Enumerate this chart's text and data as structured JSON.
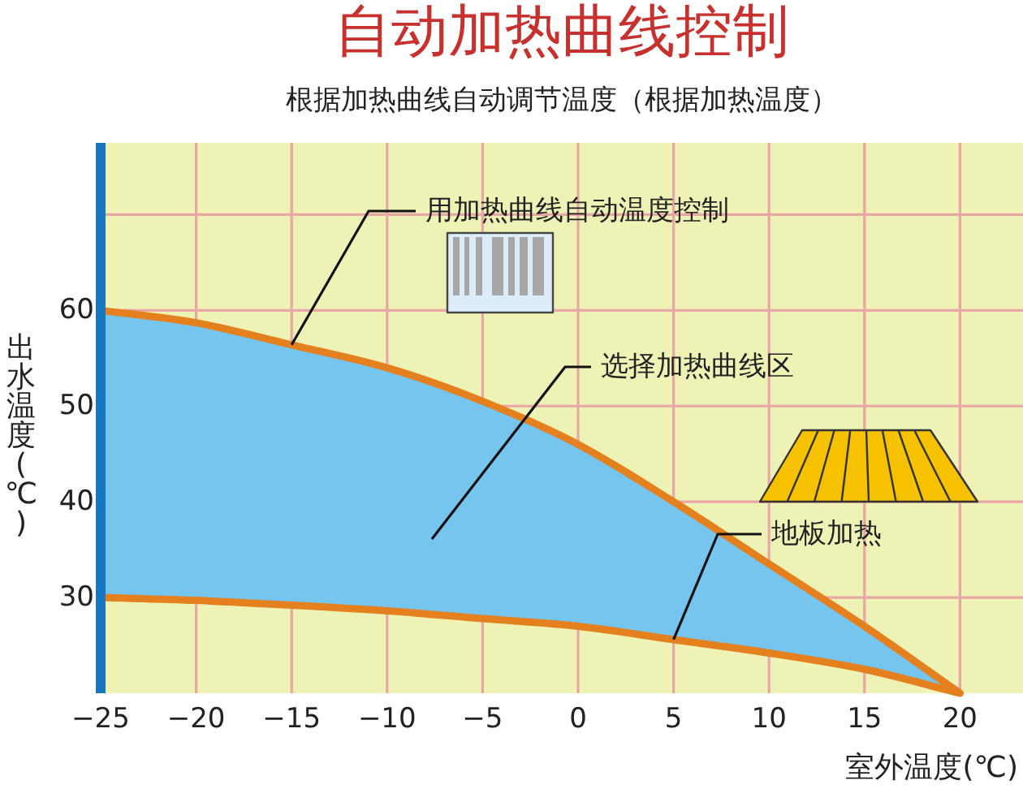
{
  "chart_data": {
    "type": "line",
    "title": "自动加热曲线控制",
    "subtitle": "根据加热曲线自动调节温度（根据加热温度）",
    "xlabel": "室外温度(℃)",
    "ylabel": "出水温度(℃)",
    "x": [
      -25,
      -20,
      -15,
      -10,
      -5,
      0,
      5,
      10,
      15,
      20
    ],
    "series": [
      {
        "type": "line",
        "color": "#e5801f",
        "values": [
          60,
          58.7,
          56.4,
          54,
          50.5,
          46,
          40,
          33.5,
          27,
          20
        ],
        "lower": [
          30,
          29.7,
          29.2,
          28.6,
          27.8,
          27,
          25.6,
          24.2,
          22.5,
          20
        ],
        "upper": [
          60,
          58.7,
          56.4,
          54,
          50.5,
          46,
          40,
          33.5,
          27,
          20
        ]
      },
      {
        "type": "line",
        "color": "#e5801f",
        "values": [
          30,
          29.7,
          29.2,
          28.6,
          27.8,
          27,
          25.6,
          24.2,
          22.5,
          20
        ]
      }
    ],
    "xlim": [
      -25,
      23.3
    ],
    "ylim": [
      20,
      77.5
    ],
    "xticks": [
      {
        "value": -25,
        "label": "−25"
      },
      {
        "value": -20,
        "label": "−20"
      },
      {
        "value": -15,
        "label": "−15"
      },
      {
        "value": -10,
        "label": "−10"
      },
      {
        "value": -5,
        "label": "−5"
      },
      0,
      5,
      10,
      15,
      20
    ],
    "yticks": [
      30,
      40,
      50,
      60,
      {
        "value": 70,
        "label": null
      }
    ],
    "grid": true,
    "annotations": [
      {
        "text": "用加热曲线自动温度控制",
        "x": -15,
        "y": 56.4
      },
      "选择加热曲线区",
      {
        "text": "地板加热",
        "x": 5,
        "y": 25.6
      }
    ]
  }
}
